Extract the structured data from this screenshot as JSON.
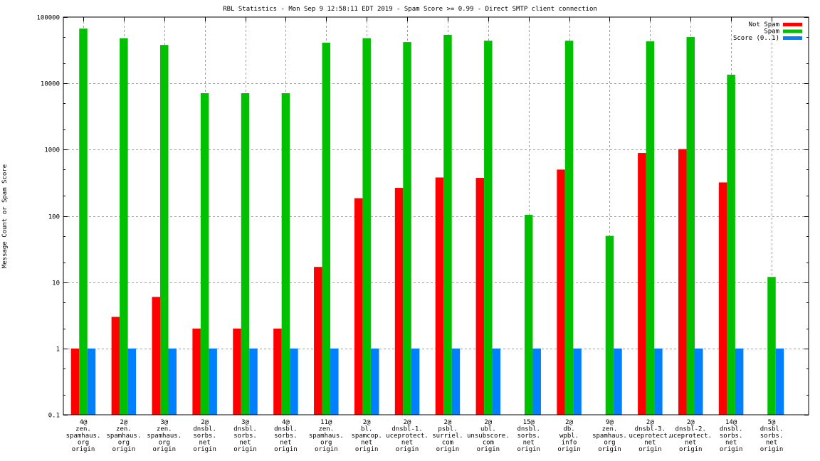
{
  "chart_data": {
    "type": "bar",
    "title": "RBL Statistics - Mon Sep  9 12:58:11 EDT 2019 - Spam Score >= 0.99 - Direct SMTP client connection",
    "xlabel": "",
    "ylabel": "Message Count or Spam Score",
    "yscale": "log",
    "ylim": [
      0.1,
      100000
    ],
    "yticks": [
      "0.1",
      "1",
      "10",
      "100",
      "1000",
      "10000",
      "100000"
    ],
    "ytick_values": [
      0.1,
      1,
      10,
      100,
      1000,
      10000,
      100000
    ],
    "grid": true,
    "legend_position": "top-right",
    "categories": [
      [
        "4@",
        "zen.",
        "spamhaus.",
        "org",
        "origin"
      ],
      [
        "2@",
        "zen.",
        "spamhaus.",
        "org",
        "origin"
      ],
      [
        "3@",
        "zen.",
        "spamhaus.",
        "org",
        "origin"
      ],
      [
        "2@",
        "dnsbl.",
        "sorbs.",
        "net",
        "origin"
      ],
      [
        "3@",
        "dnsbl.",
        "sorbs.",
        "net",
        "origin"
      ],
      [
        "4@",
        "dnsbl.",
        "sorbs.",
        "net",
        "origin"
      ],
      [
        "11@",
        "zen.",
        "spamhaus.",
        "org",
        "origin"
      ],
      [
        "2@",
        "bl.",
        "spamcop.",
        "net",
        "origin"
      ],
      [
        "2@",
        "dnsbl-1.",
        "uceprotect.",
        "net",
        "origin"
      ],
      [
        "2@",
        "psbl.",
        "surriel.",
        "com",
        "origin"
      ],
      [
        "2@",
        "ubl.",
        "unsubscore.",
        "com",
        "origin"
      ],
      [
        "15@",
        "dnsbl.",
        "sorbs.",
        "net",
        "origin"
      ],
      [
        "2@",
        "db.",
        "wpbl.",
        "info",
        "origin"
      ],
      [
        "9@",
        "zen.",
        "spamhaus.",
        "org",
        "origin"
      ],
      [
        "2@",
        "dnsbl-3.",
        "uceprotect.",
        "net",
        "origin"
      ],
      [
        "2@",
        "dnsbl-2.",
        "uceprotect.",
        "net",
        "origin"
      ],
      [
        "14@",
        "dnsbl.",
        "sorbs.",
        "net",
        "origin"
      ],
      [
        "5@",
        "dnsbl.",
        "sorbs.",
        "net",
        "origin"
      ]
    ],
    "series": [
      {
        "name": "Not Spam",
        "color": "#ff0000",
        "values": [
          1,
          3,
          6,
          2,
          2,
          2,
          17,
          185,
          265,
          380,
          375,
          null,
          500,
          null,
          890,
          1020,
          320,
          null
        ]
      },
      {
        "name": "Spam",
        "color": "#00c000",
        "values": [
          67000,
          48000,
          38000,
          7100,
          7100,
          7100,
          41000,
          48000,
          42000,
          54000,
          44000,
          104,
          44000,
          50,
          43000,
          50000,
          13500,
          12
        ]
      },
      {
        "name": "Score (0..1)",
        "color": "#0080ff",
        "values": [
          1,
          1,
          1,
          1,
          1,
          1,
          1,
          1,
          1,
          1,
          1,
          1,
          1,
          1,
          1,
          1,
          1,
          1
        ]
      }
    ]
  }
}
